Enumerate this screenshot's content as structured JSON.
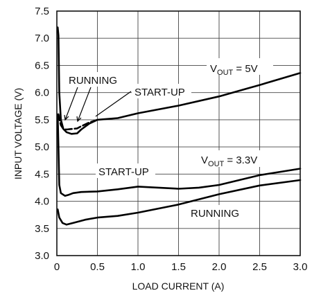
{
  "chart_data": {
    "type": "line",
    "xlabel": "LOAD CURRENT (A)",
    "ylabel": "INPUT VOLTAGE (V)",
    "xlim": [
      0,
      3.0
    ],
    "ylim": [
      3.0,
      7.5
    ],
    "x_ticks": [
      "0",
      "0.5",
      "1.0",
      "1.5",
      "2.0",
      "2.5",
      "3.0"
    ],
    "y_ticks": [
      "3.0",
      "3.5",
      "4.0",
      "4.5",
      "5.0",
      "5.5",
      "6.0",
      "6.5",
      "7.0",
      "7.5"
    ],
    "grid": true,
    "series": [
      {
        "dashed": false,
        "x": [
          0.01,
          0.02,
          0.03,
          0.05,
          0.08,
          0.12,
          0.18,
          0.25,
          0.3,
          0.4,
          0.5,
          0.75,
          1.0,
          1.5,
          2.0,
          2.5,
          3.0
        ],
        "y": [
          7.2,
          7.05,
          6.0,
          5.5,
          5.33,
          5.27,
          5.24,
          5.25,
          5.32,
          5.43,
          5.5,
          5.53,
          5.62,
          5.76,
          5.93,
          6.14,
          6.36
        ]
      },
      {
        "dashed": true,
        "x": [
          0.02,
          0.03,
          0.05,
          0.08,
          0.12,
          0.18,
          0.25,
          0.3,
          0.4,
          0.5
        ],
        "y": [
          5.6,
          5.52,
          5.4,
          5.33,
          5.32,
          5.33,
          5.34,
          5.38,
          5.45,
          5.5
        ]
      },
      {
        "dashed": false,
        "x": [
          0.01,
          0.02,
          0.03,
          0.05,
          0.1,
          0.15,
          0.2,
          0.3,
          0.5,
          0.75,
          1.0,
          1.25,
          1.5,
          1.75,
          2.0,
          2.5,
          3.0
        ],
        "y": [
          5.6,
          5.0,
          4.3,
          4.15,
          4.1,
          4.12,
          4.15,
          4.17,
          4.18,
          4.22,
          4.27,
          4.25,
          4.23,
          4.25,
          4.3,
          4.48,
          4.6
        ]
      },
      {
        "dashed": false,
        "x": [
          0.01,
          0.03,
          0.07,
          0.12,
          0.2,
          0.35,
          0.5,
          0.75,
          1.0,
          1.5,
          2.0,
          2.5,
          3.0
        ],
        "y": [
          3.85,
          3.7,
          3.6,
          3.57,
          3.6,
          3.66,
          3.7,
          3.73,
          3.79,
          3.94,
          4.13,
          4.29,
          4.39
        ]
      }
    ],
    "annotations": {
      "vout5_main": "V",
      "vout5_sub": "OUT",
      "vout5_rest": " = 5V",
      "vout33_main": "V",
      "vout33_sub": "OUT",
      "vout33_rest": " = 3.3V",
      "running_top": "RUNNING",
      "startup_top": "START-UP",
      "startup_bottom": "START-UP",
      "running_bottom": "RUNNING"
    }
  }
}
